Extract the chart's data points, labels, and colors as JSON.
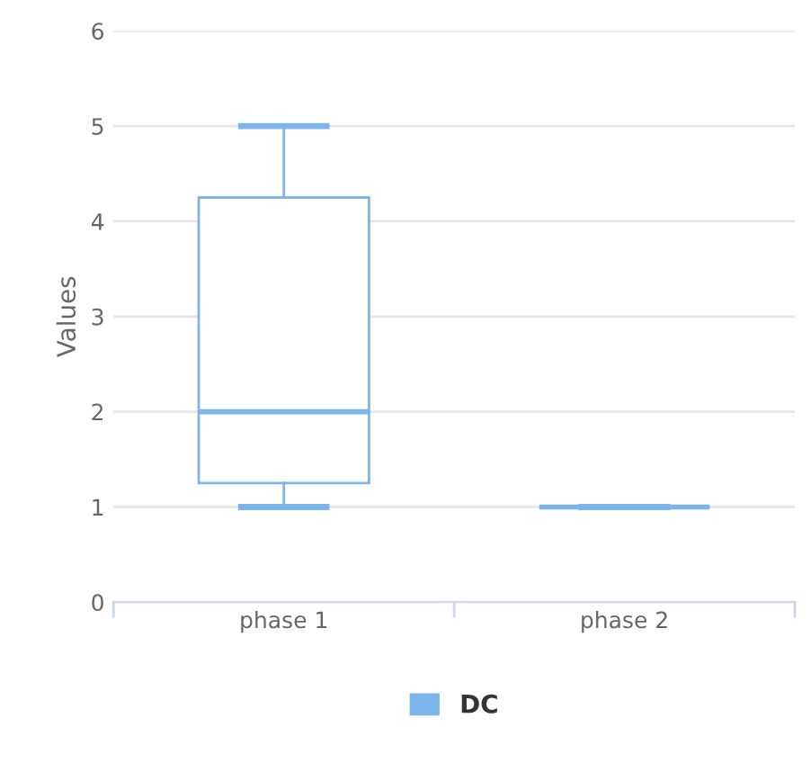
{
  "chart_data": {
    "type": "box",
    "ylabel": "Values",
    "categories": [
      "phase 1",
      "phase 2"
    ],
    "series": [
      {
        "name": "DC",
        "color": "#7cb5ec",
        "boxes": [
          {
            "low": 1,
            "q1": 1.25,
            "median": 2,
            "q3": 4.25,
            "high": 5
          },
          {
            "low": 1,
            "q1": 1,
            "median": 1,
            "q3": 1,
            "high": 1
          }
        ]
      }
    ],
    "ylim": [
      0,
      6
    ],
    "yticks": [
      0,
      1,
      2,
      3,
      4,
      5,
      6
    ],
    "grid": "y",
    "legend": "bottom"
  }
}
